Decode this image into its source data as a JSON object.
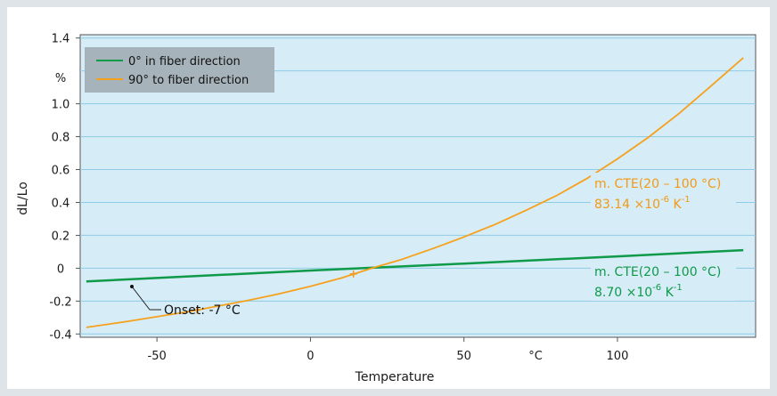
{
  "colors": {
    "plot_bg": "#d6ecf7",
    "grid": "#8fcbe6",
    "series_0": "#0e9a48",
    "series_90": "#f6a11c",
    "legend_bg": "#a7b3ba",
    "frame_bg": "#dfe4e8"
  },
  "chart_data": {
    "type": "line",
    "xlabel": "Temperature",
    "ylabel": "dL/Lo",
    "x_unit_label": "°C",
    "y_unit_label": "%",
    "xlim": [
      -75,
      145
    ],
    "ylim": [
      -0.42,
      1.42
    ],
    "x_ticks": [
      {
        "value": -50,
        "label": "-50"
      },
      {
        "value": 0,
        "label": "0"
      },
      {
        "value": 50,
        "label": "50"
      },
      {
        "value": 100,
        "label": "100"
      }
    ],
    "y_ticks": [
      {
        "value": 1.4,
        "label": "1.4"
      },
      {
        "value": 1.0,
        "label": "1.0"
      },
      {
        "value": 0.8,
        "label": "0.8"
      },
      {
        "value": 0.6,
        "label": "0.6"
      },
      {
        "value": 0.4,
        "label": "0.4"
      },
      {
        "value": 0.2,
        "label": "0.2"
      },
      {
        "value": 0,
        "label": "0"
      },
      {
        "value": -0.2,
        "label": "-0.2"
      },
      {
        "value": -0.4,
        "label": "-0.4"
      }
    ],
    "gridlines_y": [
      1.4,
      1.2,
      1.0,
      0.8,
      0.6,
      0.4,
      0.2,
      0,
      -0.2,
      -0.4
    ],
    "grid": true,
    "legend_position": "top-left",
    "series": [
      {
        "name": "0° in fiber direction",
        "color": "#0e9a48",
        "x": [
          -73,
          0,
          50,
          100,
          141
        ],
        "y": [
          -0.08,
          -0.014,
          0.028,
          0.072,
          0.11
        ]
      },
      {
        "name": "90° to fiber direction",
        "color": "#f6a11c",
        "x": [
          -73,
          -60,
          -50,
          -40,
          -30,
          -20,
          -10,
          0,
          10,
          20,
          30,
          40,
          50,
          60,
          70,
          80,
          90,
          100,
          110,
          120,
          130,
          141
        ],
        "y": [
          -0.36,
          -0.325,
          -0.295,
          -0.265,
          -0.23,
          -0.195,
          -0.155,
          -0.11,
          -0.06,
          0.0,
          0.055,
          0.12,
          0.19,
          0.265,
          0.35,
          0.44,
          0.545,
          0.665,
          0.795,
          0.94,
          1.1,
          1.28
        ]
      }
    ],
    "markers": [
      {
        "series": "90° to fiber direction",
        "x": -37,
        "y": -0.255
      },
      {
        "series": "90° to fiber direction",
        "x": 14,
        "y": -0.035
      }
    ],
    "annotations": {
      "onset": {
        "label": "Onset: -7 °C",
        "x": -7,
        "y": -0.145
      },
      "cte_90": {
        "line1": "m. CTE(20 – 100 °C)",
        "line2_value": "83.14 ×10",
        "exponent": "-6",
        "unit": " K",
        "unit_exponent": "-1"
      },
      "cte_0": {
        "line1": "m. CTE(20 – 100 °C)",
        "line2_value": "8.70 ×10",
        "exponent": "-6",
        "unit": " K",
        "unit_exponent": "-1"
      }
    }
  }
}
